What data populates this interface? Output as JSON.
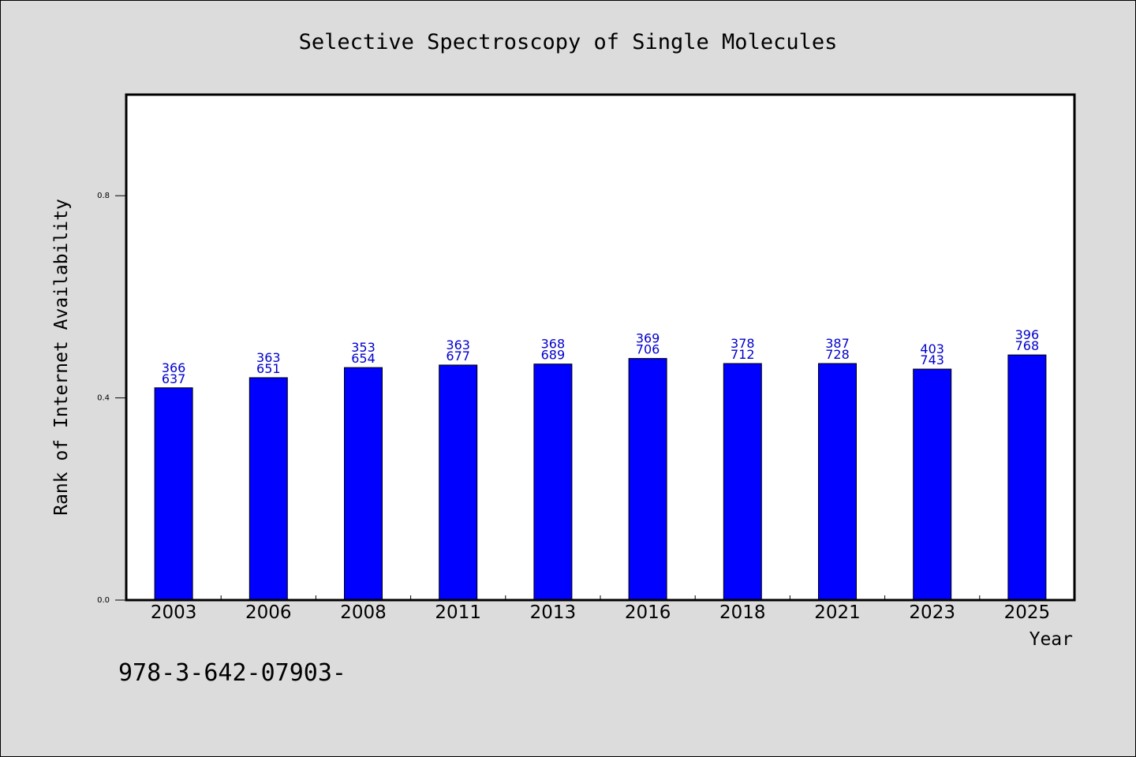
{
  "chart_data": {
    "type": "bar",
    "title": "Selective Spectroscopy of Single Molecules",
    "xlabel": "Year",
    "ylabel": "Rank of Internet Availability",
    "categories": [
      "2003",
      "2006",
      "2008",
      "2011",
      "2013",
      "2016",
      "2018",
      "2021",
      "2023",
      "2025"
    ],
    "values": [
      0.42,
      0.44,
      0.46,
      0.465,
      0.467,
      0.478,
      0.468,
      0.468,
      0.457,
      0.485
    ],
    "labels": [
      [
        "366",
        "637"
      ],
      [
        "363",
        "651"
      ],
      [
        "353",
        "654"
      ],
      [
        "363",
        "677"
      ],
      [
        "368",
        "689"
      ],
      [
        "369",
        "706"
      ],
      [
        "378",
        "712"
      ],
      [
        "387",
        "728"
      ],
      [
        "403",
        "743"
      ],
      [
        "396",
        "768"
      ]
    ],
    "ylim": [
      0,
      1.0
    ],
    "yticks": [
      "0.0",
      "0.4",
      "0.8"
    ],
    "bar_color": "#0000ff",
    "label_color": "#0000cc",
    "grid": false,
    "footer": "978-3-642-07903-"
  }
}
